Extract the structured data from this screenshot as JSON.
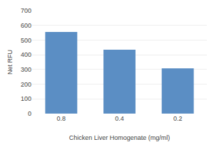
{
  "chart_data": {
    "type": "bar",
    "categories": [
      "0.8",
      "0.4",
      "0.2"
    ],
    "values": [
      555,
      435,
      308
    ],
    "color": "#5b8ec4",
    "xlabel": "Chicken Liver Homogenate (mg/ml)",
    "ylabel": "Net RFU",
    "ylim": [
      0,
      700
    ],
    "yticks": [
      0,
      100,
      200,
      300,
      400,
      500,
      600,
      700
    ],
    "grid": true
  }
}
